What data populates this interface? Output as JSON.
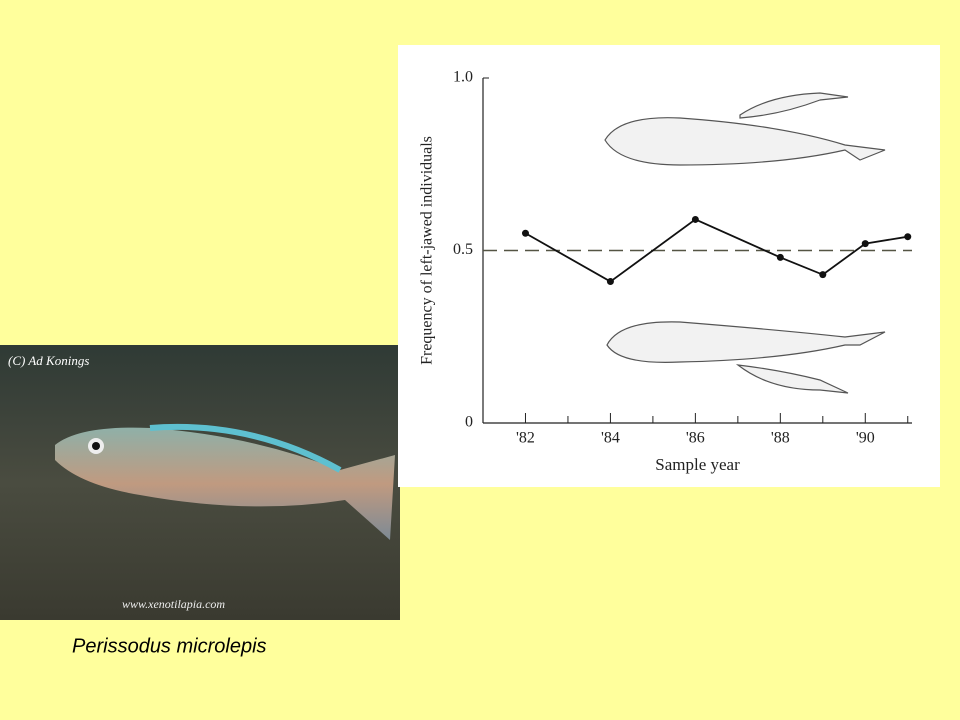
{
  "chart_data": {
    "type": "line",
    "xlabel": "Sample year",
    "ylabel": "Frequency of left-jawed individuals",
    "x": [
      1982,
      1984,
      1986,
      1988,
      1989,
      1990,
      1991
    ],
    "values": [
      0.55,
      0.41,
      0.59,
      0.48,
      0.43,
      0.52,
      0.54
    ],
    "color": "#111111",
    "reference_line": 0.5,
    "xlim": [
      1981,
      1991.1
    ],
    "ylim": [
      0,
      1
    ],
    "xticks": [
      {
        "value": 1982,
        "label": "'82"
      },
      {
        "value": 1984,
        "label": "'84"
      },
      {
        "value": 1986,
        "label": "'86"
      },
      {
        "value": 1988,
        "label": "'88"
      },
      {
        "value": 1990,
        "label": "'90"
      }
    ],
    "xminor_ticks": [
      1983,
      1985,
      1987,
      1989,
      1991
    ],
    "yticks": [
      0,
      {
        "value": 0.5,
        "label": "0.5"
      },
      {
        "value": 1,
        "label": "1.0"
      }
    ]
  },
  "photo": {
    "credit": "(C) Ad Konings",
    "website": "www.xenotilapia.com"
  },
  "caption": "Perissodus microlepis"
}
